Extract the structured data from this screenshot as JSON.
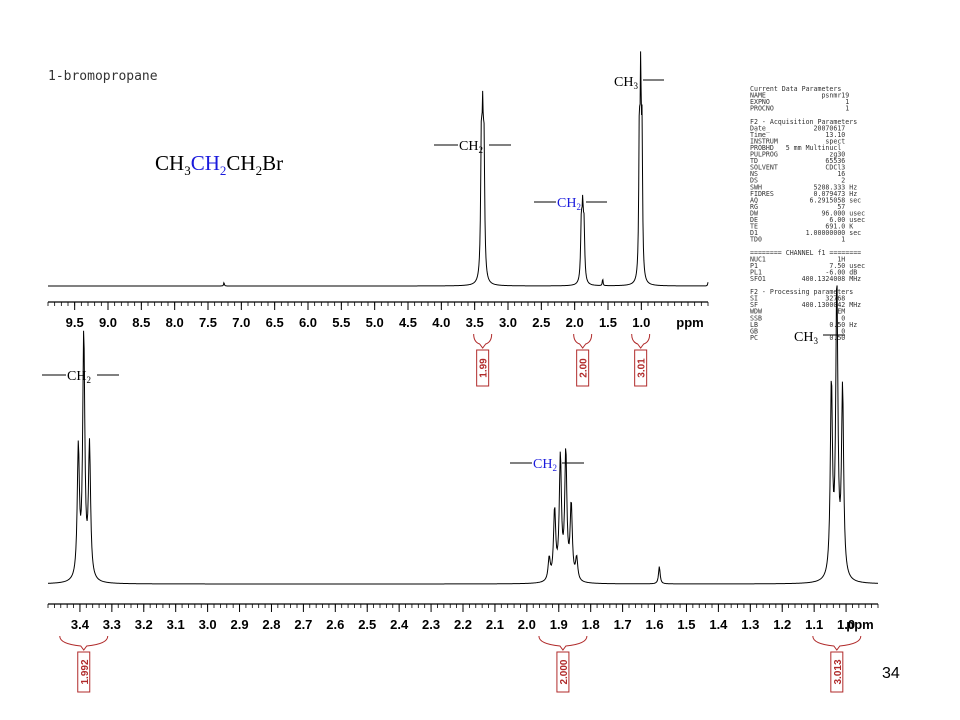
{
  "header": {
    "compound": "1-bromopropane"
  },
  "formula": {
    "ch3": "CH",
    "ch2_blue": "CH",
    "ch2_end": "CH",
    "br": "Br",
    "sub3": "3",
    "sub2": "2"
  },
  "labels": {
    "ch2": "CH",
    "ch3": "CH",
    "sub2": "2",
    "sub3": "3"
  },
  "params": [
    "Current Data Parameters",
    "NAME              psnmr19",
    "EXPNO                   1",
    "PROCNO                  1",
    "",
    "F2 - Acquisition Parameters",
    "Date_           20070617",
    "Time               13.10",
    "INSTRUM            spect",
    "PROBHD   5 mm Multinucl",
    "PULPROG             zg30",
    "TD                 65536",
    "SOLVENT            CDCl3",
    "NS                    16",
    "DS                     2",
    "SWH             5208.333 Hz",
    "FIDRES          0.079473 Hz",
    "AQ             6.2915058 sec",
    "RG                    57",
    "DW                96.000 usec",
    "DE                  6.00 usec",
    "TE                 691.0 K",
    "D1            1.00000000 sec",
    "TD0                    1",
    "",
    "======== CHANNEL f1 ========",
    "NUC1                  1H",
    "P1                  7.50 usec",
    "PL1                -6.00 dB",
    "SFO1         400.1324008 MHz",
    "",
    "F2 - Processing parameters",
    "SI                 32768",
    "SF           400.1300042 MHz",
    "WDW                   EM",
    "SSB                    0",
    "LB                  0.50 Hz",
    "GB                     0",
    "PC                  0.50"
  ],
  "page_number": "34",
  "colors": {
    "axis": "#000000",
    "integral": "#b02a2a",
    "blue": "#1a1adc"
  },
  "chart_data": [
    {
      "type": "line",
      "title": "",
      "xlabel": "ppm",
      "xlim": [
        9.9,
        0.0
      ],
      "ticks": [
        "9.5",
        "9.0",
        "8.5",
        "8.0",
        "7.5",
        "7.0",
        "6.5",
        "6.0",
        "5.5",
        "5.0",
        "4.5",
        "4.0",
        "3.5",
        "3.0",
        "2.5",
        "2.0",
        "1.5",
        "1.0"
      ],
      "peaks": [
        {
          "shift": 3.4,
          "height": 0.68,
          "width": 0.012
        },
        {
          "shift": 3.38,
          "height": 0.7,
          "width": 0.012
        },
        {
          "shift": 3.36,
          "height": 0.66,
          "width": 0.012
        },
        {
          "shift": 1.9,
          "height": 0.3,
          "width": 0.012
        },
        {
          "shift": 1.88,
          "height": 0.34,
          "width": 0.012
        },
        {
          "shift": 1.86,
          "height": 0.28,
          "width": 0.012
        },
        {
          "shift": 1.58,
          "height": 0.04,
          "width": 0.006
        },
        {
          "shift": 1.03,
          "height": 0.76,
          "width": 0.01
        },
        {
          "shift": 1.01,
          "height": 0.98,
          "width": 0.01
        },
        {
          "shift": 0.99,
          "height": 0.74,
          "width": 0.01
        },
        {
          "shift": 7.26,
          "height": 0.02,
          "width": 0.006
        },
        {
          "shift": 0.0,
          "height": 0.02,
          "width": 0.006
        }
      ],
      "integrals": [
        {
          "center": 3.38,
          "value": "1.99"
        },
        {
          "center": 1.88,
          "value": "2.00"
        },
        {
          "center": 1.01,
          "value": "3.01"
        }
      ]
    },
    {
      "type": "line",
      "title": "",
      "xlabel": "ppm",
      "xlim": [
        3.5,
        0.9
      ],
      "ticks": [
        "3.4",
        "3.3",
        "3.2",
        "3.1",
        "3.0",
        "2.9",
        "2.8",
        "2.7",
        "2.6",
        "2.5",
        "2.4",
        "2.3",
        "2.2",
        "2.1",
        "2.0",
        "1.9",
        "1.8",
        "1.7",
        "1.6",
        "1.5",
        "1.4",
        "1.3",
        "1.2",
        "1.1",
        "1.0"
      ],
      "peaks": [
        {
          "shift": 3.405,
          "height": 0.52,
          "width": 0.004
        },
        {
          "shift": 3.388,
          "height": 0.98,
          "width": 0.004
        },
        {
          "shift": 3.37,
          "height": 0.53,
          "width": 0.004
        },
        {
          "shift": 1.93,
          "height": 0.09,
          "width": 0.004
        },
        {
          "shift": 1.913,
          "height": 0.28,
          "width": 0.004
        },
        {
          "shift": 1.895,
          "height": 0.49,
          "width": 0.004
        },
        {
          "shift": 1.878,
          "height": 0.51,
          "width": 0.004
        },
        {
          "shift": 1.861,
          "height": 0.3,
          "width": 0.004
        },
        {
          "shift": 1.844,
          "height": 0.09,
          "width": 0.004
        },
        {
          "shift": 1.585,
          "height": 0.07,
          "width": 0.003
        },
        {
          "shift": 1.046,
          "height": 0.77,
          "width": 0.004
        },
        {
          "shift": 1.029,
          "height": 1.17,
          "width": 0.004
        },
        {
          "shift": 1.011,
          "height": 0.75,
          "width": 0.004
        }
      ],
      "integrals": [
        {
          "center": 3.388,
          "value": "1.992"
        },
        {
          "center": 1.887,
          "value": "2.000"
        },
        {
          "center": 1.029,
          "value": "3.013"
        }
      ]
    }
  ]
}
